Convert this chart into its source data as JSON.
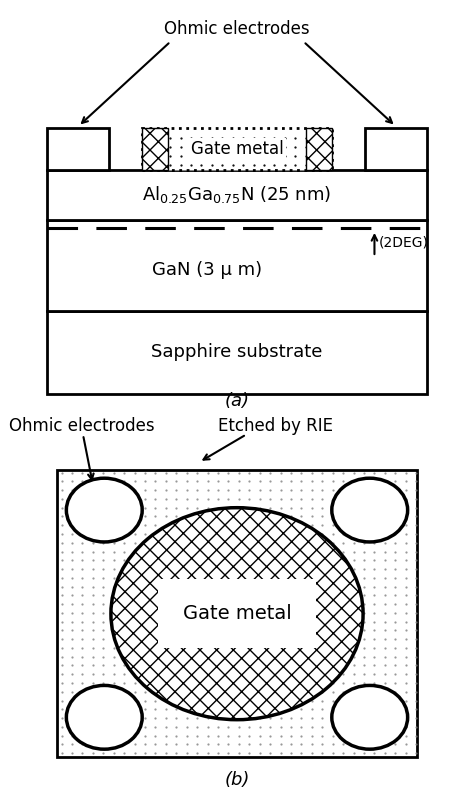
{
  "fig_width": 4.74,
  "fig_height": 7.97,
  "bg_color": "#ffffff",
  "panel_a": {
    "label": "(a)",
    "algan_label": "Al$_{0.25}$Ga$_{0.75}$N (25 nm)",
    "gan_label": "GaN (3 μ m)",
    "sapphire_label": "Sapphire substrate",
    "gate_label": "Gate metal",
    "ohmic_label": "Ohmic electrodes",
    "deg_label": "(2DEG)"
  },
  "panel_b": {
    "label": "(b)",
    "ohmic_label": "Ohmic electrodes",
    "rie_label": "Etched by RIE",
    "gate_label": "Gate metal"
  }
}
